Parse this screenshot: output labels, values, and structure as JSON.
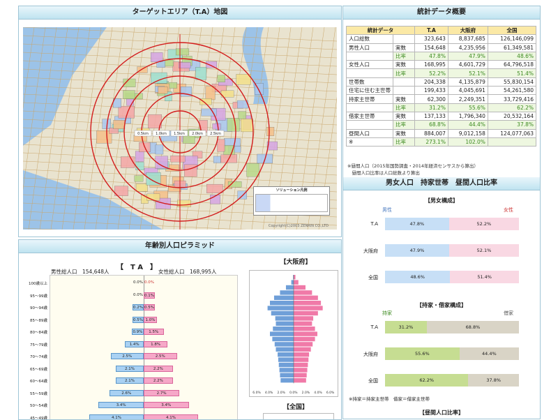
{
  "map": {
    "title": "ターゲットエリア（T.A）地図",
    "ring_labels": [
      "0.5km",
      "1.0km",
      "1.5km",
      "2.0km",
      "2.5km"
    ],
    "legend_title": "ソリューション凡例",
    "copyright": "Copyright(C)2003 ZENRIN CO.,LTD"
  },
  "stats": {
    "title": "統計データ概要",
    "headers": [
      "統計データ",
      "T.A",
      "大阪府",
      "全国"
    ],
    "rows": [
      {
        "label": "人口総数",
        "sub": "",
        "v": [
          "323,643",
          "8,837,685",
          "126,146,099"
        ],
        "ratio": false
      },
      {
        "label": "男性人口",
        "sub": "実数",
        "v": [
          "154,648",
          "4,235,956",
          "61,349,581"
        ],
        "ratio": false
      },
      {
        "label": "",
        "sub": "比率",
        "v": [
          "47.8%",
          "47.9%",
          "48.6%"
        ],
        "ratio": true
      },
      {
        "label": "女性人口",
        "sub": "実数",
        "v": [
          "168,995",
          "4,601,729",
          "64,796,518"
        ],
        "ratio": false
      },
      {
        "label": "",
        "sub": "比率",
        "v": [
          "52.2%",
          "52.1%",
          "51.4%"
        ],
        "ratio": true
      },
      {
        "label": "世帯数",
        "sub": "",
        "v": [
          "204,338",
          "4,135,879",
          "55,830,154"
        ],
        "ratio": false
      },
      {
        "label": "住宅に住む主世帯",
        "sub": "",
        "v": [
          "199,433",
          "4,045,691",
          "54,261,580"
        ],
        "ratio": false
      },
      {
        "label": "持家主世帯",
        "sub": "実数",
        "v": [
          "62,300",
          "2,249,351",
          "33,729,416"
        ],
        "ratio": false
      },
      {
        "label": "",
        "sub": "比率",
        "v": [
          "31.2%",
          "55.6%",
          "62.2%"
        ],
        "ratio": true
      },
      {
        "label": "借家主世帯",
        "sub": "実数",
        "v": [
          "137,133",
          "1,796,340",
          "20,532,164"
        ],
        "ratio": false
      },
      {
        "label": "",
        "sub": "比率",
        "v": [
          "68.8%",
          "44.4%",
          "37.8%"
        ],
        "ratio": true
      },
      {
        "label": "昼間人口",
        "sub": "実数",
        "v": [
          "884,007",
          "9,012,158",
          "124,077,063"
        ],
        "ratio": false
      },
      {
        "label": "※",
        "sub": "比率",
        "v": [
          "273.1%",
          "102.0%",
          ""
        ],
        "ratio": true
      }
    ],
    "notes": [
      "※昼間人口（2015年国勢調査・2014年経済センサスから算出）",
      "　昼間人口比率は人口総数より算出"
    ]
  },
  "ratios": {
    "title": "男女人口　持家世帯　昼間人口比率",
    "gender_title": "【男女構成】",
    "male_label": "男性",
    "female_label": "女性",
    "gender": [
      {
        "name": "T.A",
        "male": 47.8,
        "female": 52.2,
        "male_t": "47.8%",
        "female_t": "52.2%"
      },
      {
        "name": "大阪府",
        "male": 47.9,
        "female": 52.1,
        "male_t": "47.9%",
        "female_t": "52.1%"
      },
      {
        "name": "全国",
        "male": 48.6,
        "female": 51.4,
        "male_t": "48.6%",
        "female_t": "51.4%"
      }
    ],
    "house_title": "【持家・借家構成】",
    "own_label": "持家",
    "rent_label": "借家",
    "house": [
      {
        "name": "T.A",
        "own": 31.2,
        "rent": 68.8,
        "own_t": "31.2%",
        "rent_t": "68.8%"
      },
      {
        "name": "大阪府",
        "own": 55.6,
        "rent": 44.4,
        "own_t": "55.6%",
        "rent_t": "44.4%"
      },
      {
        "name": "全国",
        "own": 62.2,
        "rent": 37.8,
        "own_t": "62.2%",
        "rent_t": "37.8%"
      }
    ],
    "house_note": "※持家＝持家主世帯　借家＝借家主世帯",
    "daytime_title": "【昼間人口比率】"
  },
  "pyramid": {
    "title": "年齢別人口ピラミッド",
    "ta_heading": "【　T A　】",
    "male_total_label": "男性総人口",
    "male_total": "154,648人",
    "female_total_label": "女性総人口",
    "female_total": "168,995人",
    "osaka_heading": "【大阪府】",
    "national_heading": "【全国】",
    "rows": [
      {
        "age": "100歳以上",
        "m": 0.0,
        "f": 0.0,
        "mt": "0.0%",
        "ft": "0.0%"
      },
      {
        "age": "95～99歳",
        "m": 0.0,
        "f": 0.1,
        "mt": "0.0%",
        "ft": "0.1%"
      },
      {
        "age": "90～94歳",
        "m": 0.2,
        "f": 0.5,
        "mt": "0.2%",
        "ft": "0.5%"
      },
      {
        "age": "85～89歳",
        "m": 0.5,
        "f": 1.0,
        "mt": "0.5%",
        "ft": "1.0%"
      },
      {
        "age": "80～84歳",
        "m": 0.9,
        "f": 1.5,
        "mt": "0.9%",
        "ft": "1.5%"
      },
      {
        "age": "75～79歳",
        "m": 1.4,
        "f": 1.8,
        "mt": "1.4%",
        "ft": "1.8%"
      },
      {
        "age": "70～74歳",
        "m": 2.5,
        "f": 2.5,
        "mt": "2.5%",
        "ft": "2.5%"
      },
      {
        "age": "65～69歳",
        "m": 2.1,
        "f": 2.2,
        "mt": "2.1%",
        "ft": "2.2%"
      },
      {
        "age": "60～64歳",
        "m": 2.1,
        "f": 2.2,
        "mt": "2.1%",
        "ft": "2.2%"
      },
      {
        "age": "55～59歳",
        "m": 2.6,
        "f": 2.7,
        "mt": "2.6%",
        "ft": "2.7%"
      },
      {
        "age": "50～54歳",
        "m": 3.4,
        "f": 3.4,
        "mt": "3.4%",
        "ft": "3.4%"
      },
      {
        "age": "45～49歳",
        "m": 4.1,
        "f": 4.1,
        "mt": "4.1%",
        "ft": "4.1%"
      }
    ],
    "osaka": [
      0.1,
      0.4,
      1.3,
      2.3,
      3.3,
      4.0,
      4.4,
      3.8,
      3.1,
      3.0,
      3.5,
      4.0,
      3.6,
      3.2,
      3.0,
      2.7,
      2.6,
      2.5,
      2.4,
      2.3,
      2.2
    ],
    "osaka_f": [
      0.3,
      0.8,
      2.0,
      3.1,
      4.1,
      4.6,
      4.9,
      4.1,
      3.3,
      3.1,
      3.6,
      4.0,
      3.6,
      3.2,
      2.9,
      2.6,
      2.5,
      2.4,
      2.3,
      2.2,
      2.1
    ],
    "osaka_axis": [
      "6.0%",
      "4.0%",
      "2.0%",
      "0.0%",
      "2.0%",
      "4.0%",
      "6.0%"
    ]
  }
}
